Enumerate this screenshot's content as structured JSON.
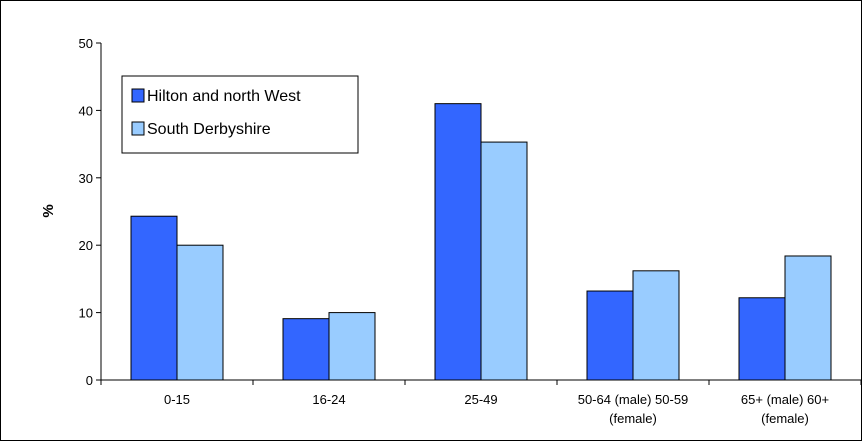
{
  "chart_data": {
    "type": "bar",
    "title": "",
    "xlabel": "",
    "ylabel": "%",
    "ylim": [
      0,
      50
    ],
    "yticks": [
      0,
      10,
      20,
      30,
      40,
      50
    ],
    "grid": false,
    "legend_position": "top-left",
    "categories": [
      [
        "0-15"
      ],
      [
        "16-24"
      ],
      [
        "25-49"
      ],
      [
        "50-64 (male) 50-59",
        "(female)"
      ],
      [
        "65+ (male) 60+",
        "(female)"
      ]
    ],
    "series": [
      {
        "name": "Hilton and north West",
        "color": "#3366ff",
        "values": [
          24.3,
          9.1,
          41.0,
          13.2,
          12.2
        ]
      },
      {
        "name": "South Derbyshire",
        "color": "#99ccff",
        "values": [
          20.0,
          10.0,
          35.3,
          16.2,
          18.4
        ]
      }
    ]
  }
}
